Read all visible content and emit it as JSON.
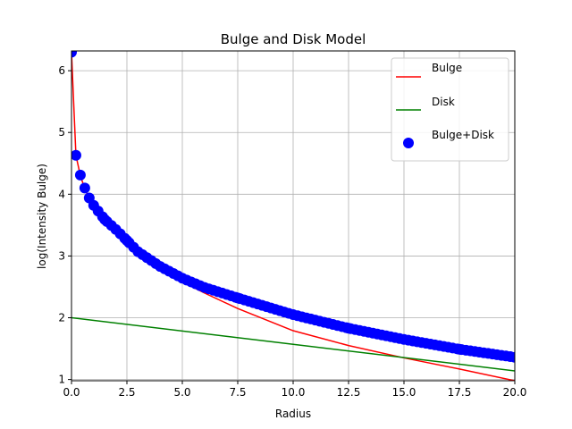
{
  "chart_data": {
    "type": "line",
    "title": "Bulge and Disk Model",
    "xlabel": "Radius",
    "ylabel": "log(Intensity Bulge)",
    "xlim": [
      0,
      20
    ],
    "ylim": [
      0.98,
      6.32
    ],
    "grid": true,
    "legend_position": "top-right",
    "x_ticks": [
      {
        "value": 0,
        "label": "0.0"
      },
      {
        "value": 2.5,
        "label": "2.5"
      },
      {
        "value": 5,
        "label": "5.0"
      },
      {
        "value": 7.5,
        "label": "7.5"
      },
      {
        "value": 10,
        "label": "10.0"
      },
      {
        "value": 12.5,
        "label": "12.5"
      },
      {
        "value": 15,
        "label": "15.0"
      },
      {
        "value": 17.5,
        "label": "17.5"
      },
      {
        "value": 20,
        "label": "20.0"
      }
    ],
    "y_ticks": [
      {
        "value": 1,
        "label": "1"
      },
      {
        "value": 2,
        "label": "2"
      },
      {
        "value": 3,
        "label": "3"
      },
      {
        "value": 4,
        "label": "4"
      },
      {
        "value": 5,
        "label": "5"
      },
      {
        "value": 6,
        "label": "6"
      }
    ],
    "series": [
      {
        "name": "Bulge",
        "kind": "line",
        "color": "#ff0000",
        "x": [
          0,
          0.2,
          0.4,
          0.6,
          0.8,
          1.0,
          1.5,
          2.0,
          2.5,
          3.0,
          4.0,
          5.0,
          6.0,
          7.5,
          10.0,
          12.5,
          15.0,
          17.5,
          20.0
        ],
        "y": [
          6.3,
          4.63,
          4.3,
          4.09,
          3.93,
          3.8,
          3.56,
          3.38,
          3.22,
          3.08,
          2.81,
          2.58,
          2.4,
          2.15,
          1.79,
          1.55,
          1.35,
          1.17,
          0.98
        ]
      },
      {
        "name": "Disk",
        "kind": "line",
        "color": "#008000",
        "x": [
          0,
          20
        ],
        "y": [
          2.0,
          1.14
        ]
      },
      {
        "name": "Bulge+Disk",
        "kind": "scatter",
        "color": "#0000ff",
        "x": [
          0,
          0.2,
          0.4,
          0.6,
          0.8,
          1.0,
          1.5,
          2.0,
          2.5,
          3.0,
          4.0,
          5.0,
          6.0,
          7.5,
          10.0,
          12.5,
          15.0,
          17.5,
          20.0
        ],
        "y": [
          6.3,
          4.63,
          4.31,
          4.1,
          3.94,
          3.82,
          3.59,
          3.43,
          3.25,
          3.07,
          2.83,
          2.64,
          2.49,
          2.32,
          2.05,
          1.83,
          1.65,
          1.49,
          1.36
        ]
      }
    ]
  }
}
